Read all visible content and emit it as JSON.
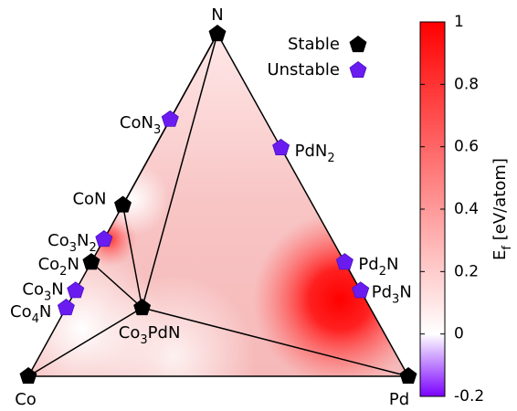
{
  "chart_data": {
    "type": "ternary",
    "corners": [
      "Co",
      "N",
      "Pd"
    ],
    "points": [
      {
        "label": "N",
        "n": 1,
        "pd": 0,
        "stable": true
      },
      {
        "label": "Co",
        "n": 0,
        "pd": 0,
        "stable": true
      },
      {
        "label": "Pd",
        "n": 0,
        "pd": 1,
        "stable": true
      },
      {
        "label": "CoN",
        "n": 0.5,
        "pd": 0,
        "stable": true
      },
      {
        "label": "Co2N",
        "n": 0.333,
        "pd": 0,
        "stable": true
      },
      {
        "label": "Co3PdN",
        "n": 0.2,
        "pd": 0.2,
        "stable": true
      },
      {
        "label": "CoN3",
        "n": 0.75,
        "pd": 0,
        "stable": false
      },
      {
        "label": "PdN2",
        "n": 0.667,
        "pd": 0.333,
        "stable": false
      },
      {
        "label": "Co3N2",
        "n": 0.4,
        "pd": 0,
        "stable": false
      },
      {
        "label": "Co3N",
        "n": 0.25,
        "pd": 0,
        "stable": false
      },
      {
        "label": "Co4N",
        "n": 0.2,
        "pd": 0,
        "stable": false
      },
      {
        "label": "Pd2N",
        "n": 0.333,
        "pd": 0.667,
        "stable": false
      },
      {
        "label": "Pd3N",
        "n": 0.25,
        "pd": 0.75,
        "stable": false
      }
    ],
    "legend": [
      {
        "name": "Stable",
        "color": "#000000"
      },
      {
        "name": "Unstable",
        "color": "#6a1cf0"
      }
    ],
    "colorbar": {
      "label": "Ef [eV/atom]",
      "lim": [
        -0.2,
        1
      ],
      "ticks": [
        1,
        0.8,
        0.6,
        0.4,
        0.2,
        0,
        -0.2
      ],
      "stops": [
        {
          "value": -0.2,
          "color": "#7a00ff"
        },
        {
          "value": 0,
          "color": "#ffffff"
        },
        {
          "value": 1,
          "color": "#ff0000"
        }
      ]
    }
  }
}
